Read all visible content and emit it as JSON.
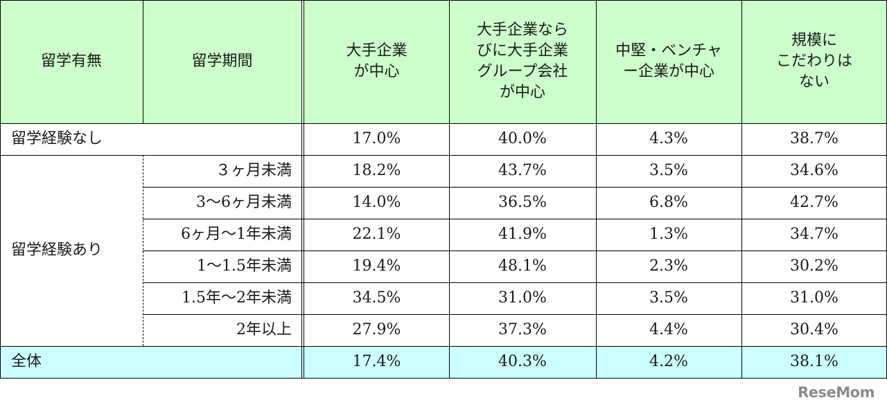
{
  "headers": {
    "abroad": "留学有無",
    "period": "留学期間",
    "cols": [
      [
        "大手企業",
        "が中心"
      ],
      [
        "大手企業なら",
        "びに大手企業",
        "グループ会社",
        "が中心"
      ],
      [
        "中堅・ベンチャ",
        "ー企業が中心"
      ],
      [
        "規模に",
        "こだわりは",
        "ない"
      ]
    ]
  },
  "rows": {
    "none": {
      "label": "留学経験なし",
      "values": [
        "17.0%",
        "40.0%",
        "4.3%",
        "38.7%"
      ]
    },
    "with": {
      "label": "留学経験あり",
      "sub": [
        {
          "period": "３ヶ月未満",
          "values": [
            "18.2%",
            "43.7%",
            "3.5%",
            "34.6%"
          ]
        },
        {
          "period": "3～6ヶ月未満",
          "values": [
            "14.0%",
            "36.5%",
            "6.8%",
            "42.7%"
          ]
        },
        {
          "period": "6ヶ月～1年未満",
          "values": [
            "22.1%",
            "41.9%",
            "1.3%",
            "34.7%"
          ]
        },
        {
          "period": "1～1.5年未満",
          "values": [
            "19.4%",
            "48.1%",
            "2.3%",
            "30.2%"
          ]
        },
        {
          "period": "1.5年～2年未満",
          "values": [
            "34.5%",
            "31.0%",
            "3.5%",
            "31.0%"
          ]
        },
        {
          "period": "2年以上",
          "values": [
            "27.9%",
            "37.3%",
            "4.4%",
            "30.4%"
          ]
        }
      ]
    },
    "total": {
      "label": "全体",
      "values": [
        "17.4%",
        "40.3%",
        "4.2%",
        "38.1%"
      ]
    }
  },
  "logo": "ReseMom"
}
